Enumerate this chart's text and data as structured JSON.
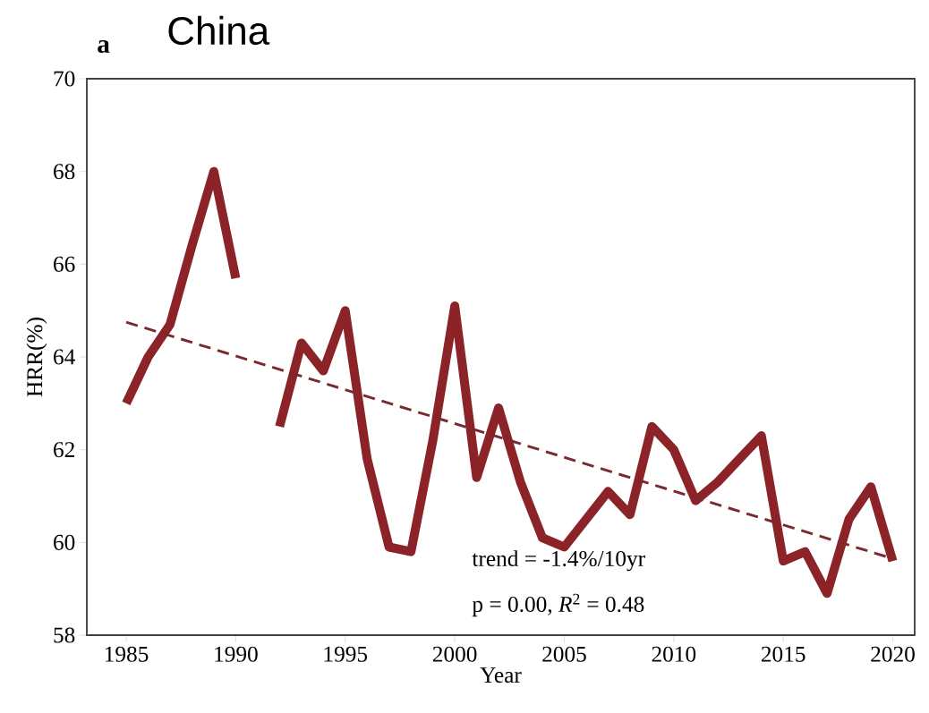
{
  "chart_data": {
    "type": "line",
    "title": "China",
    "xlabel": "Year",
    "ylabel": "HRR(%)",
    "x": [
      1985,
      1986,
      1987,
      1988,
      1989,
      1990,
      1991,
      1992,
      1993,
      1994,
      1995,
      1996,
      1997,
      1998,
      1999,
      2000,
      2001,
      2002,
      2003,
      2004,
      2005,
      2006,
      2007,
      2008,
      2009,
      2010,
      2011,
      2012,
      2013,
      2014,
      2015,
      2016,
      2017,
      2018,
      2019,
      2020
    ],
    "series": [
      {
        "color": "#8b2328",
        "values": [
          63.0,
          64.0,
          64.7,
          66.4,
          68.0,
          65.7,
          null,
          62.5,
          64.3,
          63.7,
          65.0,
          61.8,
          59.9,
          59.8,
          62.2,
          65.1,
          61.4,
          62.9,
          61.3,
          60.1,
          59.9,
          60.5,
          61.1,
          60.6,
          62.5,
          62.0,
          60.9,
          61.3,
          61.8,
          62.3,
          59.6,
          59.8,
          58.9,
          60.5,
          61.2,
          59.6
        ]
      },
      {
        "type": "line",
        "color": "#7a2a2e",
        "line_style": "dashed",
        "x": [
          1985,
          2020
        ],
        "values": [
          64.75,
          59.65
        ]
      }
    ],
    "xlim": [
      1983.2,
      2021
    ],
    "ylim": [
      58,
      70
    ],
    "xticks": [
      1985,
      1990,
      1995,
      2000,
      2005,
      2010,
      2015,
      2020
    ],
    "yticks": [
      58,
      60,
      62,
      64,
      66,
      68,
      70
    ],
    "grid": false,
    "annotations": [
      "a",
      "trend = -1.4%/10yr",
      "p = 0.00,   *R*$^{2}$ = 0.48"
    ]
  }
}
